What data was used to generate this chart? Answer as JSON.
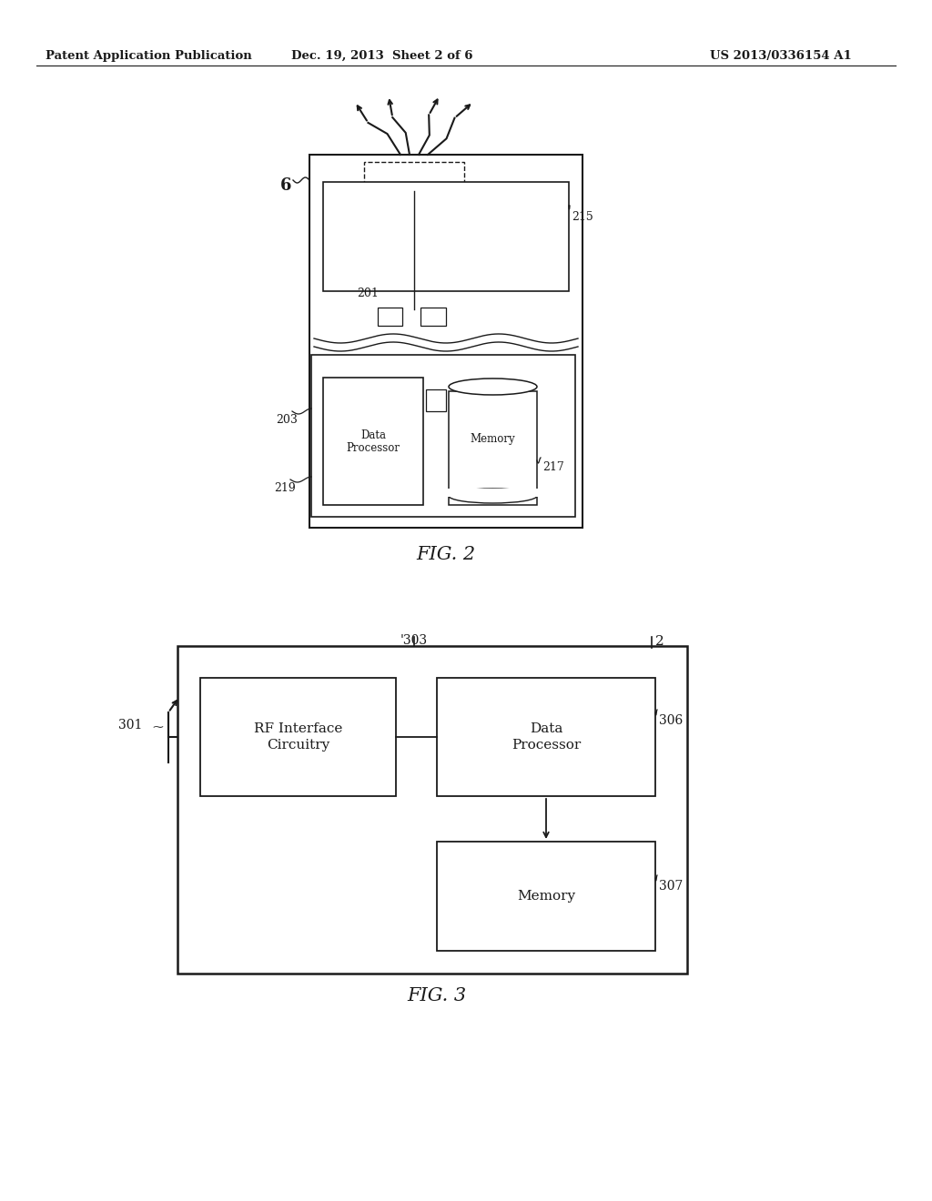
{
  "bg_color": "#ffffff",
  "header_left": "Patent Application Publication",
  "header_center": "Dec. 19, 2013  Sheet 2 of 6",
  "header_right": "US 2013/0336154 A1",
  "fig2_label": "FIG. 2",
  "fig3_label": "FIG. 3",
  "fig2_ref": "6",
  "fig2_215": "215",
  "fig2_201": "201",
  "fig2_203": "203",
  "fig2_217": "217",
  "fig2_219": "219",
  "fig3_301": "301",
  "fig3_303": "303",
  "fig3_2": "2",
  "fig3_306": "306",
  "fig3_307": "307",
  "fig3_rf_label1": "RF Interface",
  "fig3_rf_label2": "Circuitry",
  "fig3_dp_label1": "Data",
  "fig3_dp_label2": "Processor",
  "fig3_mem_label": "Memory",
  "fig2_dp_label1": "Data",
  "fig2_dp_label2": "Processor",
  "fig2_mem_label": "Memory",
  "line_color": "#1a1a1a",
  "text_color": "#1a1a1a"
}
